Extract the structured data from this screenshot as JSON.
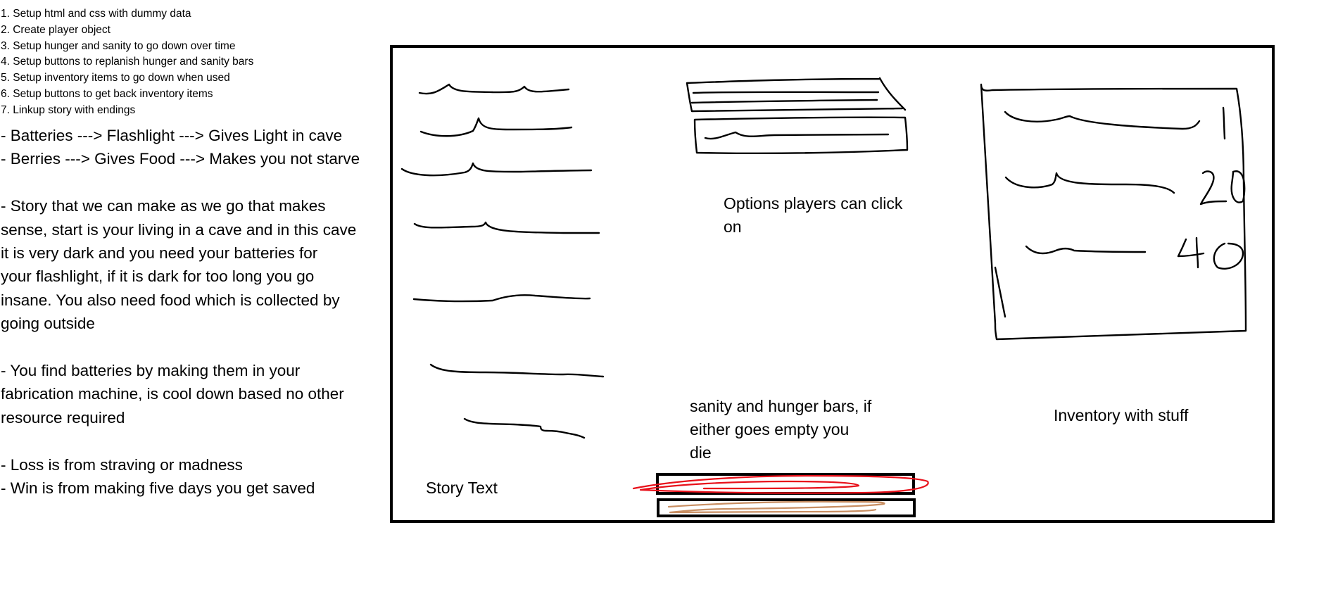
{
  "steps": [
    "1. Setup html and css with dummy data",
    "2. Create player object",
    "3. Setup hunger and sanity to go down over time",
    "4. Setup buttons to replanish hunger and sanity bars",
    "5. Setup inventory items to go down when used",
    "6. Setup buttons to get back inventory items",
    "7. Linkup story with endings"
  ],
  "notes": {
    "line1": "- Batteries ---> Flashlight ---> Gives Light in cave",
    "line2": "- Berries ---> Gives Food ---> Makes you not starve",
    "story_lines": [
      "- Story that we can make as we go that makes",
      "sense, start is your living in a cave and in this cave",
      "it is very dark and you need your batteries for",
      "your flashlight, if it is dark for too long you go",
      "insane. You also need food which is collected by",
      "going outside"
    ],
    "battery_lines": [
      "- You find batteries by making them in your",
      "fabrication machine, is cool down based no other",
      "resource required"
    ],
    "loss": "- Loss is from straving or madness",
    "win": "- Win is from making five days you get saved"
  },
  "mockup": {
    "options_line1": "Options players can click",
    "options_line2": "on",
    "bars_line1": "sanity and hunger bars, if",
    "bars_line2": "either goes empty you",
    "bars_line3": "die",
    "inventory_label": "Inventory with stuff",
    "story_label": "Story Text"
  },
  "colors": {
    "ink": "#000000",
    "sanity_bar": "#e8101a",
    "hunger_bar": "#c88e62"
  }
}
